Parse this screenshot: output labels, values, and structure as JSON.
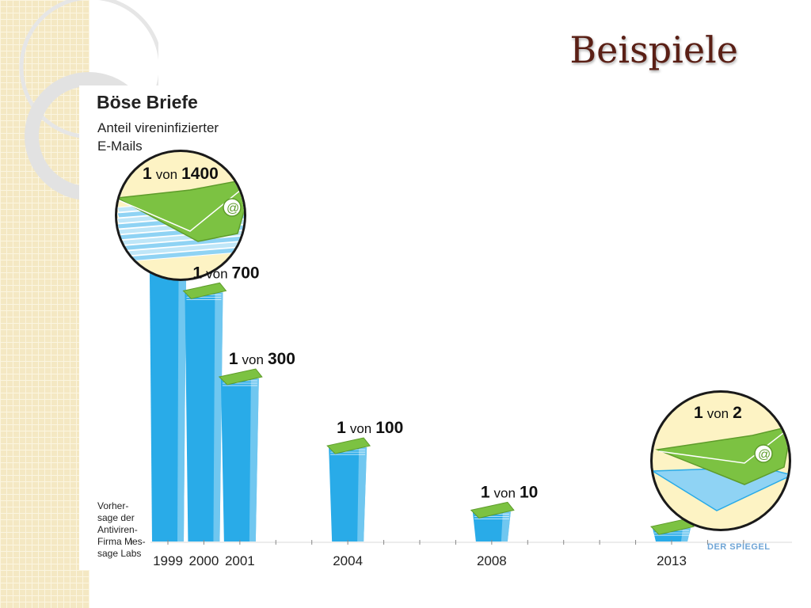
{
  "slide": {
    "title": "Beispiele"
  },
  "chart_data": {
    "type": "bar",
    "title": "Böse Briefe",
    "subtitle_lines": [
      "Anteil vireninfizierter",
      "E-Mails"
    ],
    "forecast_note_lines": [
      "Vorher-",
      "sage der",
      "Antiviren-",
      "Firma Mes-",
      "sage Labs"
    ],
    "source": "DER SPIEGEL",
    "word_von": "von",
    "x_ticks": [
      "1999",
      "2000",
      "2001",
      "2004",
      "2008",
      "2013"
    ],
    "points": [
      {
        "year": "1999",
        "num": "1",
        "den": "1400",
        "share": 0.000714
      },
      {
        "year": "2000",
        "num": "1",
        "den": "700",
        "share": 0.001429
      },
      {
        "year": "2001",
        "num": "1",
        "den": "300",
        "share": 0.003333
      },
      {
        "year": "2004",
        "num": "1",
        "den": "100",
        "share": 0.01
      },
      {
        "year": "2008",
        "num": "1",
        "den": "10",
        "share": 0.1
      },
      {
        "year": "2013",
        "num": "1",
        "den": "2",
        "share": 0.5
      }
    ],
    "colors": {
      "bar": "#29abe8",
      "bar_light": "#8fd3f4",
      "envelope": "#7cc242",
      "envelope_dark": "#5e9c2b",
      "bubble": "#fdf3c4"
    }
  }
}
